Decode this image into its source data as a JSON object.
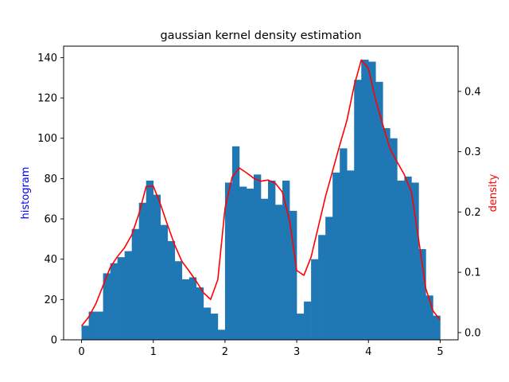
{
  "chart_data": {
    "type": "bar",
    "title": "gaussian kernel density estimation",
    "xlabel": "",
    "ylabel": "histogram",
    "y2label": "density",
    "xlim": [
      -0.25,
      5.25
    ],
    "ylim": [
      0,
      145.7
    ],
    "y2lim": [
      -0.012,
      0.475
    ],
    "xticks": [
      0,
      1,
      2,
      3,
      4,
      5
    ],
    "yticks": [
      0,
      20,
      40,
      60,
      80,
      100,
      120,
      140
    ],
    "y2ticks": [
      0.0,
      0.1,
      0.2,
      0.3,
      0.4
    ],
    "y2tick_labels": [
      "0.0",
      "0.1",
      "0.2",
      "0.3",
      "0.4"
    ],
    "grid": false,
    "colors": {
      "histogram": "#1f77b4",
      "density": "#ff0000",
      "ylabel": "#0000ff",
      "y2label": "#ff0000"
    },
    "series": [
      {
        "type": "bar",
        "axis": "left",
        "bin_width": 0.1,
        "bin_starts": [
          0.0,
          0.1,
          0.2,
          0.3,
          0.4,
          0.5,
          0.6,
          0.7,
          0.8,
          0.9,
          1.0,
          1.1,
          1.2,
          1.3,
          1.4,
          1.5,
          1.6,
          1.7,
          1.8,
          1.9,
          2.0,
          2.1,
          2.2,
          2.3,
          2.4,
          2.5,
          2.6,
          2.7,
          2.8,
          2.9,
          3.0,
          3.1,
          3.2,
          3.3,
          3.4,
          3.5,
          3.6,
          3.7,
          3.8,
          3.9,
          4.0,
          4.1,
          4.2,
          4.3,
          4.4,
          4.5,
          4.6,
          4.7,
          4.8,
          4.9
        ],
        "values": [
          7,
          14,
          14,
          33,
          38,
          41,
          44,
          55,
          68,
          79,
          72,
          57,
          49,
          39,
          30,
          31,
          26,
          16,
          13,
          5,
          78,
          96,
          76,
          75,
          82,
          70,
          79,
          67,
          79,
          64,
          13,
          19,
          40,
          52,
          61,
          83,
          95,
          84,
          129,
          139,
          138,
          128,
          105,
          100,
          79,
          81,
          78,
          45,
          22,
          12
        ]
      },
      {
        "type": "line",
        "axis": "right",
        "x": [
          0.0,
          0.1,
          0.2,
          0.3,
          0.4,
          0.5,
          0.6,
          0.7,
          0.8,
          0.9,
          1.0,
          1.1,
          1.2,
          1.3,
          1.4,
          1.5,
          1.6,
          1.7,
          1.8,
          1.9,
          2.0,
          2.1,
          2.2,
          2.3,
          2.4,
          2.5,
          2.6,
          2.7,
          2.8,
          2.9,
          3.0,
          3.1,
          3.2,
          3.3,
          3.4,
          3.5,
          3.6,
          3.7,
          3.8,
          3.9,
          4.0,
          4.1,
          4.2,
          4.3,
          4.4,
          4.5,
          4.6,
          4.7,
          4.8,
          4.9,
          5.0
        ],
        "values": [
          0.011,
          0.026,
          0.048,
          0.078,
          0.108,
          0.126,
          0.141,
          0.162,
          0.197,
          0.242,
          0.243,
          0.213,
          0.178,
          0.145,
          0.118,
          0.102,
          0.085,
          0.066,
          0.055,
          0.088,
          0.206,
          0.258,
          0.273,
          0.265,
          0.256,
          0.251,
          0.253,
          0.248,
          0.233,
          0.186,
          0.103,
          0.095,
          0.125,
          0.175,
          0.225,
          0.268,
          0.311,
          0.352,
          0.409,
          0.452,
          0.438,
          0.386,
          0.345,
          0.305,
          0.283,
          0.262,
          0.233,
          0.154,
          0.073,
          0.036,
          0.021
        ]
      }
    ]
  }
}
